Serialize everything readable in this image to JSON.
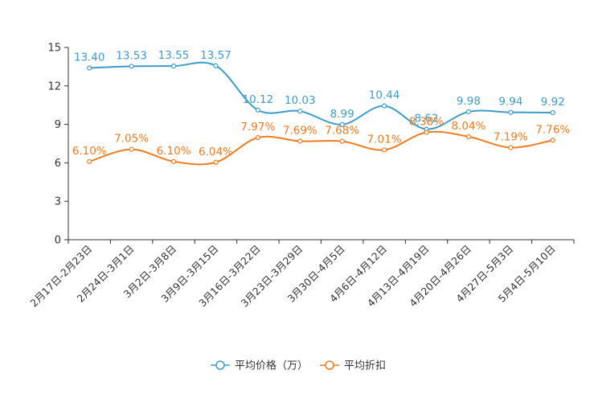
{
  "chart_data": {
    "type": "line",
    "title": "",
    "xlabel": "",
    "ylabel": "",
    "ylim": [
      0,
      15
    ],
    "yticks": [
      0,
      3,
      6,
      9,
      12,
      15
    ],
    "grid": false,
    "legend_position": "bottom-center",
    "categories": [
      "2月17日-2月23日",
      "2月24日-3月1日",
      "3月2日-3月8日",
      "3月9日-3月15日",
      "3月16日-3月22日",
      "3月23日-3月29日",
      "3月30日-4月5日",
      "4月6日-4月12日",
      "4月13日-4月19日",
      "4月20日-4月26日",
      "4月27日-5月3日",
      "5月4日-5月10日"
    ],
    "series": [
      {
        "name": "平均价格（万）",
        "color": "#3e9ccb",
        "values": [
          13.4,
          13.53,
          13.55,
          13.57,
          10.12,
          10.03,
          8.99,
          10.44,
          8.62,
          9.98,
          9.94,
          9.92
        ],
        "labels": [
          "13.40",
          "13.53",
          "13.55",
          "13.57",
          "10.12",
          "10.03",
          "8.99",
          "10.44",
          "8.62",
          "9.98",
          "9.94",
          "9.92"
        ]
      },
      {
        "name": "平均折扣",
        "color": "#f07b1e",
        "values": [
          6.1,
          7.05,
          6.1,
          6.04,
          7.97,
          7.69,
          7.68,
          7.01,
          8.38,
          8.04,
          7.19,
          7.76
        ],
        "labels": [
          "6.10%",
          "7.05%",
          "6.10%",
          "6.04%",
          "7.97%",
          "7.69%",
          "7.68%",
          "7.01%",
          "8.38%",
          "8.04%",
          "7.19%",
          "7.76%"
        ]
      }
    ]
  }
}
